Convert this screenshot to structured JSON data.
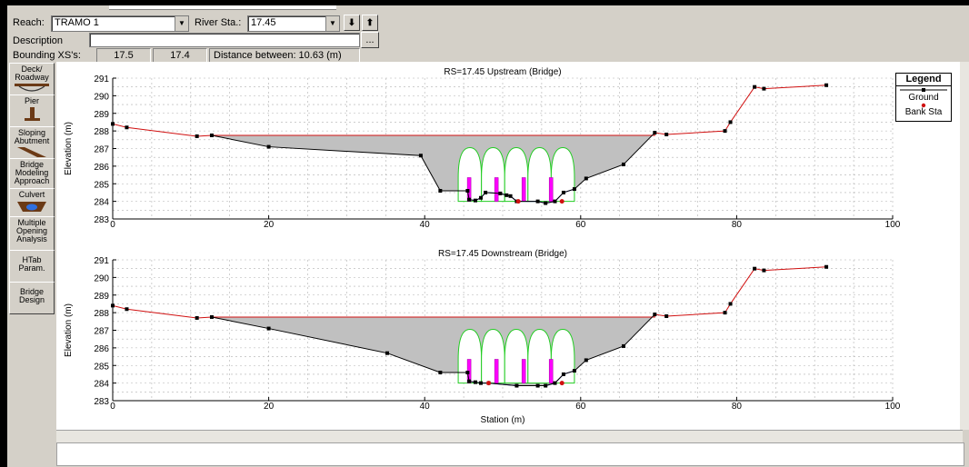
{
  "header": {
    "reach_label": "Reach:",
    "reach_value": "TRAMO 1",
    "river_sta_label": "River Sta.:",
    "river_sta_value": "17.45",
    "description_label": "Description",
    "description_value": "",
    "ellipsis_label": "...",
    "bounding_label": "Bounding XS's:",
    "bounding_up": "17.5",
    "bounding_down": "17.4",
    "distance_text": "Distance between: 10.63 (m)"
  },
  "sidebar": {
    "items": [
      {
        "label": "Deck/ Roadway",
        "icon": "deck-roadway-icon"
      },
      {
        "label": "Pier",
        "icon": "pier-icon"
      },
      {
        "label": "Sloping Abutment",
        "icon": "sloping-abutment-icon"
      },
      {
        "label": "Bridge Modeling Approach",
        "icon": "bridge-modeling-icon"
      },
      {
        "label": "Culvert",
        "icon": "culvert-icon"
      },
      {
        "label": "Multiple Opening Analysis",
        "icon": ""
      },
      {
        "label": "HTab Param.",
        "icon": ""
      },
      {
        "label": "Bridge Design",
        "icon": ""
      }
    ]
  },
  "legend": {
    "title": "Legend",
    "ground": "Ground",
    "bank": "Bank Sta"
  },
  "colors": {
    "ground": "#000000",
    "deck": "#d01010",
    "bank": "#d01010",
    "fill": "#c0c0c0",
    "arch": "#22cc22",
    "pier": "#ff00ff",
    "opening": "#2020c0"
  },
  "chart_data": [
    {
      "type": "line",
      "title": "RS=17.45  Upstream  (Bridge)",
      "xlabel": "",
      "ylabel": "Elevation (m)",
      "xlim": [
        0,
        100
      ],
      "ylim": [
        283,
        291
      ],
      "x_ticks": [
        0,
        20,
        40,
        60,
        80,
        100
      ],
      "y_ticks": [
        283,
        284,
        285,
        286,
        287,
        288,
        289,
        290,
        291
      ],
      "grid": true,
      "deck_elevation": 287.75,
      "ground": [
        [
          0,
          288.4
        ],
        [
          1.8,
          288.2
        ],
        [
          10.8,
          287.7
        ],
        [
          12.7,
          287.75
        ],
        [
          20,
          287.1
        ],
        [
          39.5,
          286.6
        ],
        [
          42,
          284.6
        ],
        [
          45.5,
          284.6
        ],
        [
          45.7,
          284.1
        ],
        [
          46.5,
          284.05
        ],
        [
          47.2,
          284.2
        ],
        [
          47.8,
          284.5
        ],
        [
          49.7,
          284.45
        ],
        [
          50.5,
          284.35
        ],
        [
          51,
          284.3
        ],
        [
          51.8,
          284.0
        ],
        [
          54.5,
          284.0
        ],
        [
          55.5,
          283.9
        ],
        [
          56.7,
          284.0
        ],
        [
          57.8,
          284.5
        ],
        [
          59.2,
          284.7
        ],
        [
          60.7,
          285.3
        ],
        [
          65.5,
          286.1
        ],
        [
          69.5,
          287.9
        ],
        [
          71,
          287.8
        ],
        [
          78.5,
          288.0
        ],
        [
          79.2,
          288.5
        ],
        [
          82.3,
          290.5
        ],
        [
          83.5,
          290.4
        ],
        [
          91.5,
          290.6
        ]
      ],
      "bank_stations": [
        [
          52,
          284.0
        ],
        [
          57.6,
          284.0
        ]
      ],
      "piers": [
        45.7,
        49.2,
        52.7,
        56.2
      ],
      "arch_spring": 285.35,
      "arch_crown": 287.05,
      "arch_span": [
        44.3,
        59.2
      ]
    },
    {
      "type": "line",
      "title": "RS=17.45  Downstream  (Bridge)",
      "xlabel": "Station (m)",
      "ylabel": "Elevation (m)",
      "xlim": [
        0,
        100
      ],
      "ylim": [
        283,
        291
      ],
      "x_ticks": [
        0,
        20,
        40,
        60,
        80,
        100
      ],
      "y_ticks": [
        283,
        284,
        285,
        286,
        287,
        288,
        289,
        290,
        291
      ],
      "grid": true,
      "deck_elevation": 287.75,
      "ground": [
        [
          0,
          288.4
        ],
        [
          1.8,
          288.2
        ],
        [
          10.8,
          287.7
        ],
        [
          12.7,
          287.75
        ],
        [
          20,
          287.1
        ],
        [
          35.2,
          285.7
        ],
        [
          42,
          284.6
        ],
        [
          45.5,
          284.6
        ],
        [
          45.7,
          284.1
        ],
        [
          46.5,
          284.05
        ],
        [
          47.2,
          284.0
        ],
        [
          48.2,
          284.0
        ],
        [
          51.8,
          283.85
        ],
        [
          54.5,
          283.85
        ],
        [
          55.5,
          283.85
        ],
        [
          56.7,
          284.0
        ],
        [
          57.8,
          284.5
        ],
        [
          59.2,
          284.7
        ],
        [
          60.7,
          285.3
        ],
        [
          65.5,
          286.1
        ],
        [
          69.5,
          287.9
        ],
        [
          71,
          287.8
        ],
        [
          78.5,
          288.0
        ],
        [
          79.2,
          288.5
        ],
        [
          82.3,
          290.5
        ],
        [
          83.5,
          290.4
        ],
        [
          91.5,
          290.6
        ]
      ],
      "bank_stations": [
        [
          48.2,
          284.0
        ],
        [
          57.6,
          284.0
        ]
      ],
      "piers": [
        45.7,
        49.2,
        52.7,
        56.2
      ],
      "arch_spring": 285.35,
      "arch_crown": 287.05,
      "arch_span": [
        44.3,
        59.2
      ]
    }
  ]
}
